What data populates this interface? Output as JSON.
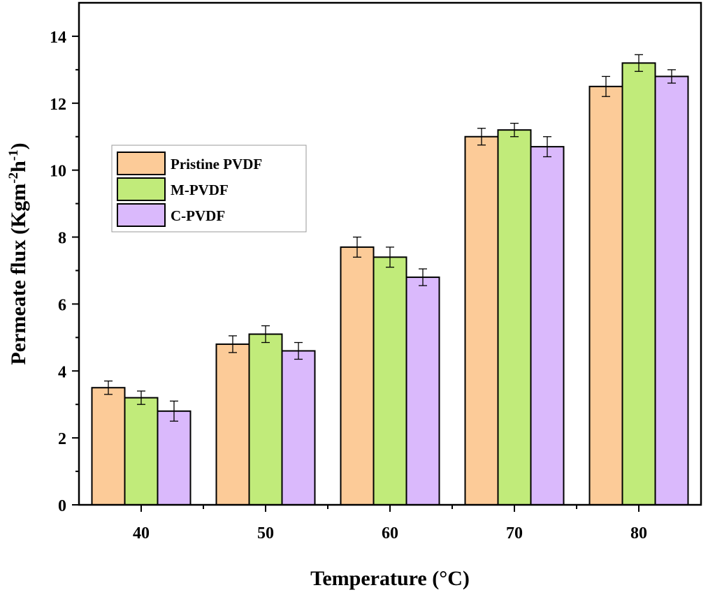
{
  "chart_data": {
    "type": "bar",
    "title": "",
    "xlabel": "Temperature (°C)",
    "ylabel_main": "Permeate flux (Kgm",
    "ylabel_sup1": "-2",
    "ylabel_mid": "h",
    "ylabel_sup2": "-1",
    "ylabel_end": ")",
    "ylim": [
      0,
      15
    ],
    "yticks": [
      0,
      2,
      4,
      6,
      8,
      10,
      12,
      14
    ],
    "ytick_labels": [
      "0",
      "2",
      "4",
      "6",
      "8",
      "10",
      "12",
      "14"
    ],
    "categories": [
      "40",
      "50",
      "60",
      "70",
      "80"
    ],
    "series": [
      {
        "name": "Pristine PVDF",
        "color": "#FCCB98",
        "values": [
          3.5,
          4.8,
          7.7,
          11.0,
          12.5
        ],
        "errors": [
          0.2,
          0.25,
          0.3,
          0.25,
          0.3
        ]
      },
      {
        "name": "M-PVDF",
        "color": "#C1EB7A",
        "values": [
          3.2,
          5.1,
          7.4,
          11.2,
          13.2
        ],
        "errors": [
          0.2,
          0.25,
          0.3,
          0.2,
          0.25
        ]
      },
      {
        "name": "C-PVDF",
        "color": "#DAB9FC",
        "values": [
          2.8,
          4.6,
          6.8,
          10.7,
          12.8
        ],
        "errors": [
          0.3,
          0.25,
          0.25,
          0.3,
          0.2
        ]
      }
    ],
    "legend_position": "upper-left",
    "grid": false
  }
}
